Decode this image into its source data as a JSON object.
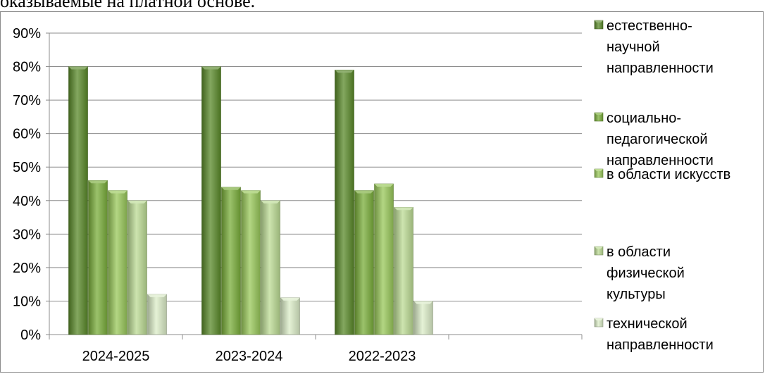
{
  "caption": "оказываемые на платной основе.",
  "chart_data": {
    "type": "bar",
    "categories": [
      "2024-2025",
      "2023-2024",
      "2022-2023"
    ],
    "ylim": [
      0,
      90
    ],
    "ytick_labels": [
      "0%",
      "10%",
      "20%",
      "30%",
      "40%",
      "50%",
      "60%",
      "70%",
      "80%",
      "90%"
    ],
    "grid": true,
    "legend_position": "right",
    "series": [
      {
        "name": "естественно-научной направленности",
        "legend_lines": [
          "естественно-",
          "научной",
          "направленности"
        ],
        "color": "#5a8a2a",
        "values": [
          80,
          80,
          79
        ]
      },
      {
        "name": "социально-педагогической направленности",
        "legend_lines": [
          "социально-",
          "педагогической",
          "направленности"
        ],
        "color": "#7aae3a",
        "values": [
          46,
          44,
          43
        ]
      },
      {
        "name": "в области искусств",
        "legend_lines": [
          "в области искусств"
        ],
        "color": "#99c85a",
        "values": [
          43,
          43,
          45
        ]
      },
      {
        "name": "в области физической культуры",
        "legend_lines": [
          "в области",
          "физической",
          "культуры"
        ],
        "color": "#bcdb94",
        "values": [
          40,
          40,
          38
        ]
      },
      {
        "name": "технической направленности",
        "legend_lines": [
          "технической",
          "направленности"
        ],
        "color": "#dcedc8",
        "values": [
          12,
          11,
          10
        ]
      }
    ]
  }
}
